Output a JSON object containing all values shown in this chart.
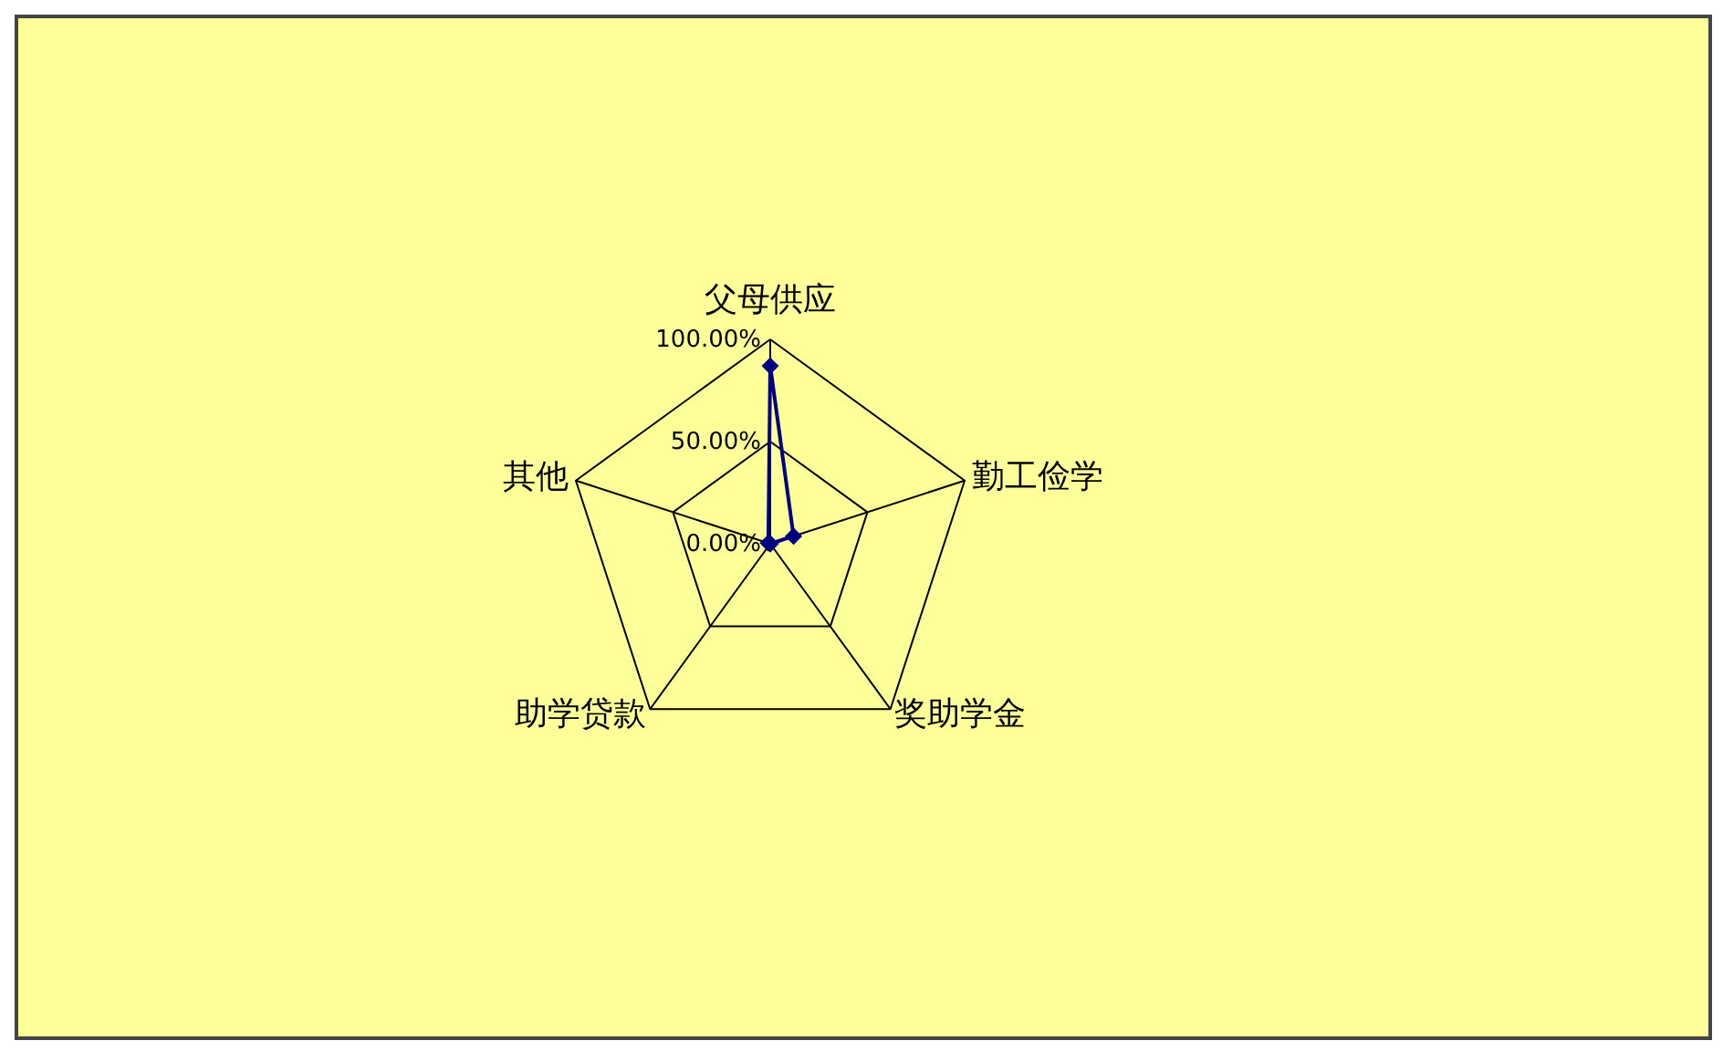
{
  "chart_data": {
    "type": "radar",
    "categories": [
      "父母供应",
      "勤工俭学",
      "奖助学金",
      "助学贷款",
      "其他"
    ],
    "series": [
      {
        "color": "#000080",
        "values": [
          87,
          12,
          0,
          0,
          1
        ]
      }
    ],
    "ylim": [
      0,
      100
    ],
    "yticks": [
      {
        "value": 0,
        "label": "0.00%"
      },
      {
        "value": 50,
        "label": "50.00%"
      },
      {
        "value": 100,
        "label": "100.00%"
      }
    ],
    "grid": true,
    "marker": "diamond"
  }
}
